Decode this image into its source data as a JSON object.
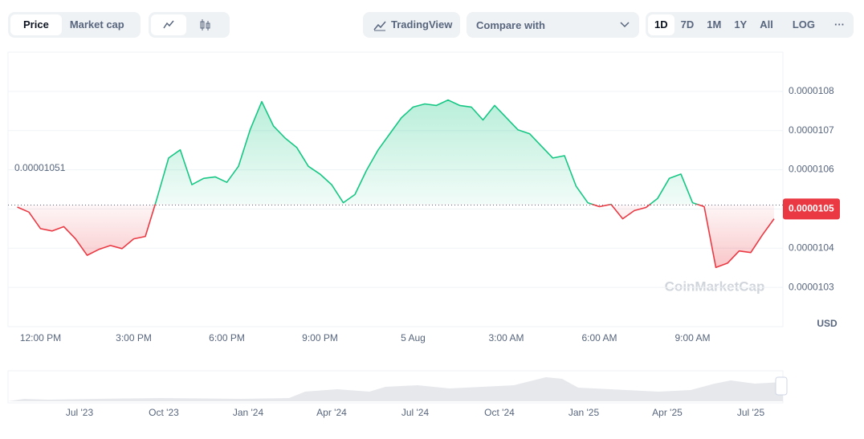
{
  "toolbar": {
    "price": "Price",
    "market_cap": "Market cap",
    "trading_view": "TradingView",
    "compare": "Compare with",
    "ranges": [
      "1D",
      "7D",
      "1M",
      "1Y",
      "All"
    ],
    "log": "LOG",
    "more": "···"
  },
  "chart_data": {
    "type": "line",
    "color": "#16c784",
    "below_color": "#ea3943",
    "categories": [
      null,
      null,
      "12:00 PM",
      null,
      null,
      null,
      null,
      null,
      null,
      null,
      "3:00 PM",
      null,
      null,
      null,
      null,
      null,
      null,
      null,
      "6:00 PM",
      null,
      null,
      null,
      null,
      null,
      null,
      null,
      "9:00 PM",
      null,
      null,
      null,
      null,
      null,
      null,
      null,
      "5 Aug",
      null,
      null,
      null,
      null,
      null,
      null,
      null,
      "3:00 AM",
      null,
      null,
      null,
      null,
      null,
      null,
      null,
      "6:00 AM",
      null,
      null,
      null,
      null,
      null,
      null,
      null,
      "9:00 AM",
      null,
      null,
      null,
      null,
      null,
      null,
      null
    ],
    "values": [
      1.0505e-05,
      1.0492e-05,
      1.045e-05,
      1.0444e-05,
      1.0455e-05,
      1.0424e-05,
      1.0382e-05,
      1.0397e-05,
      1.0407e-05,
      1.0399e-05,
      1.0424e-05,
      1.043e-05,
      1.0527e-05,
      1.063e-05,
      1.0651e-05,
      1.0562e-05,
      1.0578e-05,
      1.0582e-05,
      1.0568e-05,
      1.0609e-05,
      1.0702e-05,
      1.0774e-05,
      1.0712e-05,
      1.0681e-05,
      1.0657e-05,
      1.0609e-05,
      1.0589e-05,
      1.0562e-05,
      1.0516e-05,
      1.0537e-05,
      1.0599e-05,
      1.0651e-05,
      1.0692e-05,
      1.0733e-05,
      1.076e-05,
      1.0768e-05,
      1.0764e-05,
      1.0778e-05,
      1.0764e-05,
      1.076e-05,
      1.0727e-05,
      1.0764e-05,
      1.0733e-05,
      1.0702e-05,
      1.0692e-05,
      1.0661e-05,
      1.063e-05,
      1.0636e-05,
      1.0558e-05,
      1.0516e-05,
      1.0506e-05,
      1.0512e-05,
      1.0475e-05,
      1.0496e-05,
      1.0504e-05,
      1.0527e-05,
      1.0578e-05,
      1.0589e-05,
      1.0516e-05,
      1.0506e-05,
      1.0351e-05,
      1.0362e-05,
      1.0393e-05,
      1.0389e-05,
      1.0434e-05,
      1.0475e-05
    ],
    "baseline": 1.051e-05,
    "current_price": 1.05e-05,
    "ylim": [
      1.02e-05,
      1.09e-05
    ],
    "yticks": [
      1.03e-05,
      1.04e-05,
      1.05e-05,
      1.06e-05,
      1.07e-05,
      1.08e-05
    ],
    "y_unit": "USD",
    "watermark": "CoinMarketCap",
    "grid": true
  },
  "navigator": {
    "labels": [
      "Jul '23",
      "Oct '23",
      "Jan '24",
      "Apr '24",
      "Jul '24",
      "Oct '24",
      "Jan '25",
      "Apr '25",
      "Jul '25"
    ]
  }
}
